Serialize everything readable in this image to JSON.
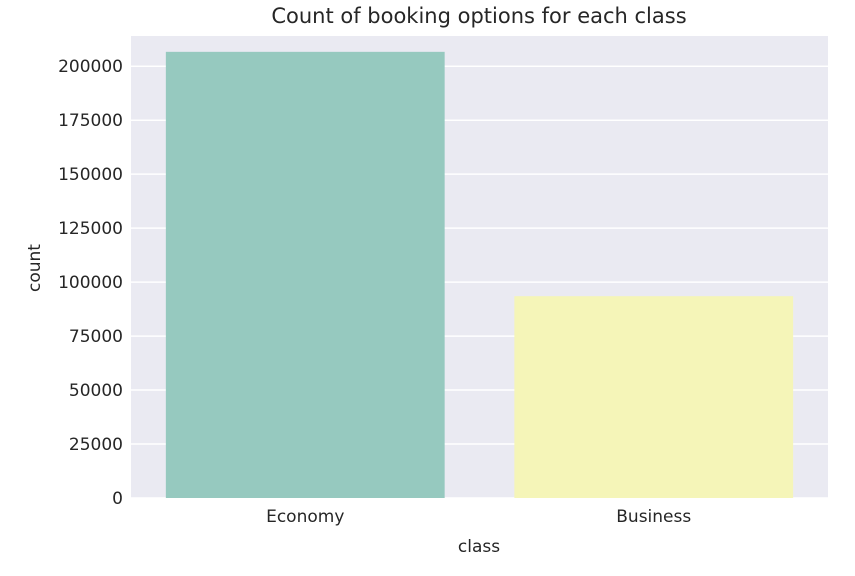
{
  "chart_data": {
    "type": "bar",
    "title": "Count of booking options for each class",
    "xlabel": "class",
    "ylabel": "count",
    "categories": [
      "Economy",
      "Business"
    ],
    "values": [
      206666,
      93487
    ],
    "colors": [
      "#96c9bf",
      "#f5f5b8"
    ],
    "ylim": [
      0,
      214000
    ],
    "yticks": [
      0,
      25000,
      50000,
      75000,
      100000,
      125000,
      150000,
      175000,
      200000
    ],
    "ytick_labels": [
      "0",
      "25000",
      "50000",
      "75000",
      "100000",
      "125000",
      "150000",
      "175000",
      "200000"
    ],
    "grid": true,
    "background": "#eaeaf2",
    "grid_color": "#ffffff"
  }
}
